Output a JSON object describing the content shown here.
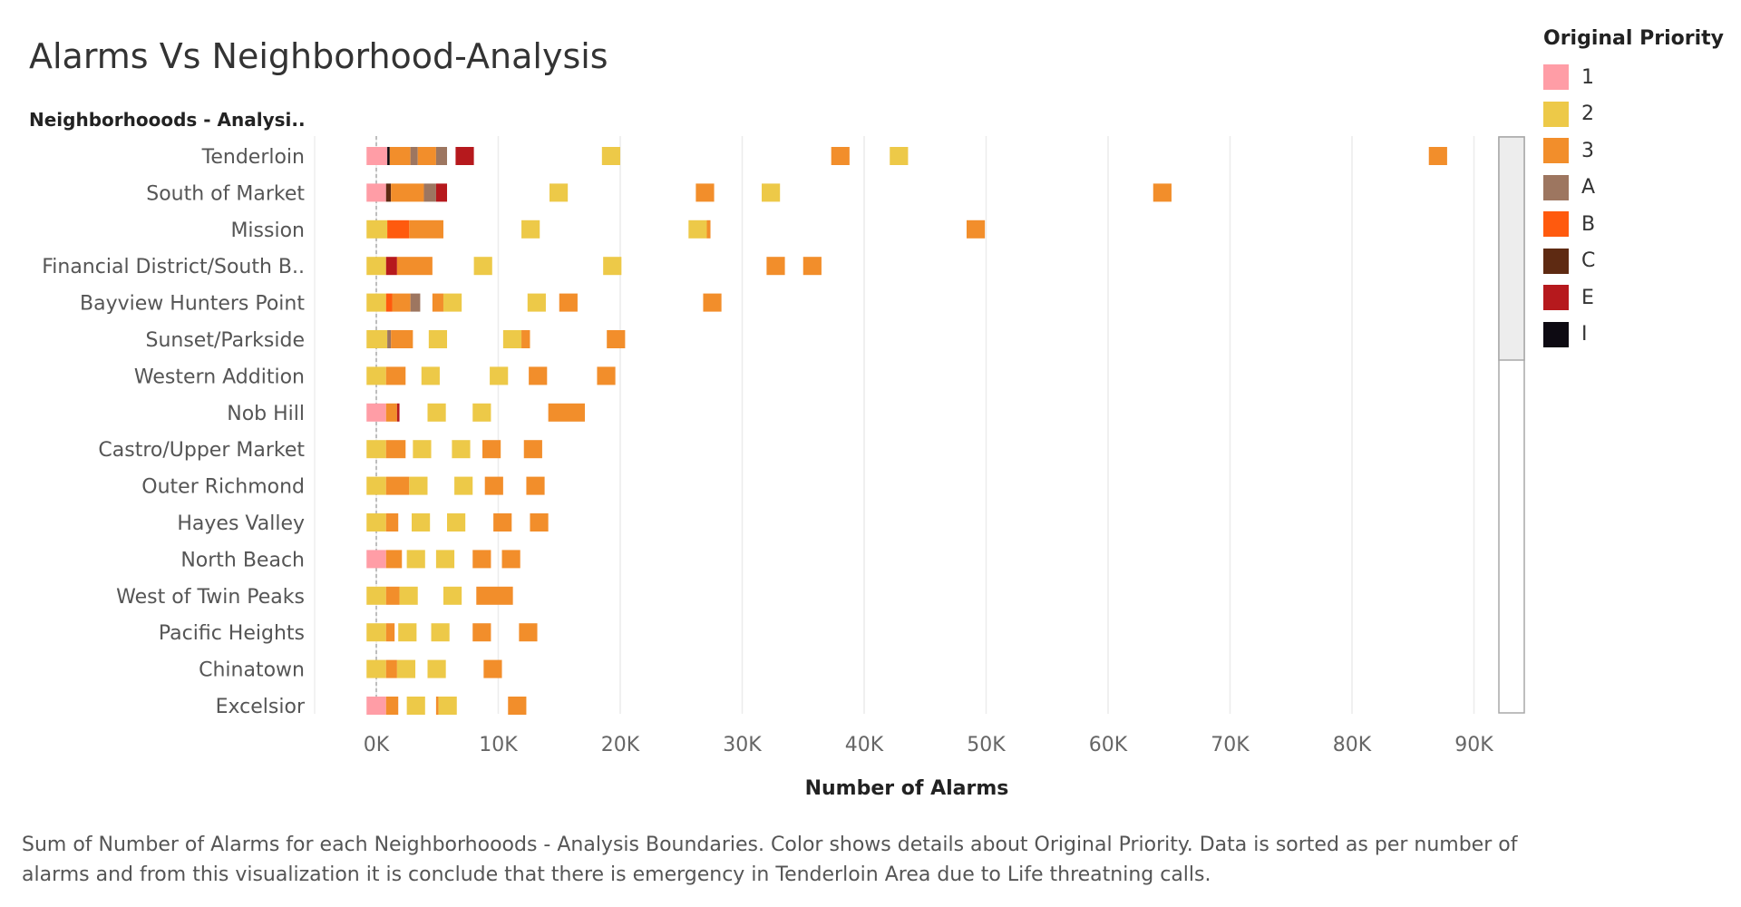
{
  "title": "Alarms Vs Neighborhood-Analysis",
  "row_header": "Neighborhooods - Analysi..",
  "caption": "Sum of Number of Alarms for each Neighborhooods - Analysis Boundaries.  Color shows details about Original Priority. Data is sorted as per number of alarms and from this visualization it is conclude that there is emergency in Tenderloin Area due to Life threatning calls.",
  "legend": {
    "title": "Original Priority",
    "items": [
      {
        "label": "1",
        "color": "#FF9DA6"
      },
      {
        "label": "2",
        "color": "#EDC948"
      },
      {
        "label": "3",
        "color": "#F28E2B"
      },
      {
        "label": "A",
        "color": "#9D7660"
      },
      {
        "label": "B",
        "color": "#FF5A0E"
      },
      {
        "label": "C",
        "color": "#5E2A12"
      },
      {
        "label": "E",
        "color": "#B6191D"
      },
      {
        "label": "I",
        "color": "#0D0A12"
      }
    ]
  },
  "chart_data": {
    "type": "bar",
    "orientation": "horizontal",
    "xlabel": "Number of Alarms",
    "ylabel": "Neighborhooods - Analysi..",
    "xlim": [
      -5000,
      93000
    ],
    "xticks": [
      "0K",
      "10K",
      "20K",
      "30K",
      "40K",
      "50K",
      "60K",
      "70K",
      "80K",
      "90K"
    ],
    "xtick_values": [
      0,
      10000,
      20000,
      30000,
      40000,
      50000,
      60000,
      70000,
      80000,
      90000
    ],
    "grid": true,
    "legend_position": "right",
    "priority_colors": {
      "1": "#FF9DA6",
      "2": "#EDC948",
      "3": "#F28E2B",
      "A": "#9D7660",
      "B": "#FF5A0E",
      "C": "#5E2A12",
      "E": "#B6191D",
      "I": "#0D0A12"
    },
    "categories": [
      "Tenderloin",
      "South of Market",
      "Mission",
      "Financial District/South B..",
      "Bayview Hunters Point",
      "Sunset/Parkside",
      "Western Addition",
      "Nob Hill",
      "Castro/Upper Market",
      "Outer Richmond",
      "Hayes Valley",
      "North Beach",
      "West of Twin Peaks",
      "Pacific Heights",
      "Chinatown",
      "Excelsior"
    ],
    "marks": [
      [
        {
          "p": "1",
          "x0": -800,
          "x1": 900
        },
        {
          "p": "I",
          "x0": 900,
          "x1": 1100
        },
        {
          "p": "3",
          "x0": 1100,
          "x1": 2800
        },
        {
          "p": "A",
          "x0": 2800,
          "x1": 3400
        },
        {
          "p": "3",
          "x0": 3400,
          "x1": 4900
        },
        {
          "p": "A",
          "x0": 4900,
          "x1": 5800
        },
        {
          "p": "E",
          "x0": 6500,
          "x1": 8000
        },
        {
          "p": "2",
          "x0": 18500,
          "x1": 20000
        },
        {
          "p": "3",
          "x0": 37300,
          "x1": 38800
        },
        {
          "p": "2",
          "x0": 42100,
          "x1": 43600
        },
        {
          "p": "3",
          "x0": 86300,
          "x1": 87800
        }
      ],
      [
        {
          "p": "1",
          "x0": -800,
          "x1": 800
        },
        {
          "p": "C",
          "x0": 800,
          "x1": 1200
        },
        {
          "p": "3",
          "x0": 1200,
          "x1": 3900
        },
        {
          "p": "A",
          "x0": 3900,
          "x1": 4900
        },
        {
          "p": "E",
          "x0": 4900,
          "x1": 5800
        },
        {
          "p": "2",
          "x0": 14200,
          "x1": 15700
        },
        {
          "p": "3",
          "x0": 26200,
          "x1": 27700
        },
        {
          "p": "2",
          "x0": 31600,
          "x1": 33100
        },
        {
          "p": "3",
          "x0": 63700,
          "x1": 65200
        }
      ],
      [
        {
          "p": "2",
          "x0": -800,
          "x1": 900
        },
        {
          "p": "B",
          "x0": 900,
          "x1": 2700
        },
        {
          "p": "3",
          "x0": 2700,
          "x1": 5500
        },
        {
          "p": "2",
          "x0": 11900,
          "x1": 13400
        },
        {
          "p": "2",
          "x0": 25600,
          "x1": 27100
        },
        {
          "p": "3",
          "x0": 27100,
          "x1": 27400
        },
        {
          "p": "3",
          "x0": 48400,
          "x1": 49900
        }
      ],
      [
        {
          "p": "2",
          "x0": -800,
          "x1": 800
        },
        {
          "p": "E",
          "x0": 800,
          "x1": 1700
        },
        {
          "p": "3",
          "x0": 1700,
          "x1": 4600
        },
        {
          "p": "2",
          "x0": 8000,
          "x1": 9500
        },
        {
          "p": "2",
          "x0": 18600,
          "x1": 20100
        },
        {
          "p": "3",
          "x0": 32000,
          "x1": 33500
        },
        {
          "p": "3",
          "x0": 35000,
          "x1": 36500
        }
      ],
      [
        {
          "p": "2",
          "x0": -800,
          "x1": 800
        },
        {
          "p": "B",
          "x0": 800,
          "x1": 1300
        },
        {
          "p": "3",
          "x0": 1300,
          "x1": 2800
        },
        {
          "p": "A",
          "x0": 2800,
          "x1": 3600
        },
        {
          "p": "3",
          "x0": 4600,
          "x1": 5500
        },
        {
          "p": "2",
          "x0": 5500,
          "x1": 7000
        },
        {
          "p": "2",
          "x0": 12400,
          "x1": 13900
        },
        {
          "p": "3",
          "x0": 15000,
          "x1": 16500
        },
        {
          "p": "3",
          "x0": 26800,
          "x1": 28300
        }
      ],
      [
        {
          "p": "2",
          "x0": -800,
          "x1": 900
        },
        {
          "p": "A",
          "x0": 900,
          "x1": 1200
        },
        {
          "p": "3",
          "x0": 1200,
          "x1": 3000
        },
        {
          "p": "2",
          "x0": 4300,
          "x1": 5800
        },
        {
          "p": "2",
          "x0": 10400,
          "x1": 11900
        },
        {
          "p": "3",
          "x0": 11900,
          "x1": 12600
        },
        {
          "p": "3",
          "x0": 18900,
          "x1": 20400
        }
      ],
      [
        {
          "p": "2",
          "x0": -800,
          "x1": 800
        },
        {
          "p": "3",
          "x0": 800,
          "x1": 2400
        },
        {
          "p": "2",
          "x0": 3700,
          "x1": 5200
        },
        {
          "p": "2",
          "x0": 9300,
          "x1": 10800
        },
        {
          "p": "3",
          "x0": 12500,
          "x1": 14000
        },
        {
          "p": "3",
          "x0": 18100,
          "x1": 19600
        }
      ],
      [
        {
          "p": "1",
          "x0": -800,
          "x1": 800
        },
        {
          "p": "3",
          "x0": 800,
          "x1": 1700
        },
        {
          "p": "E",
          "x0": 1700,
          "x1": 1900
        },
        {
          "p": "2",
          "x0": 4200,
          "x1": 5700
        },
        {
          "p": "2",
          "x0": 7900,
          "x1": 9400
        },
        {
          "p": "3",
          "x0": 14100,
          "x1": 17100
        }
      ],
      [
        {
          "p": "2",
          "x0": -800,
          "x1": 800
        },
        {
          "p": "3",
          "x0": 800,
          "x1": 2400
        },
        {
          "p": "2",
          "x0": 3000,
          "x1": 4500
        },
        {
          "p": "2",
          "x0": 6200,
          "x1": 7700
        },
        {
          "p": "3",
          "x0": 8700,
          "x1": 10200
        },
        {
          "p": "3",
          "x0": 12100,
          "x1": 13600
        }
      ],
      [
        {
          "p": "2",
          "x0": -800,
          "x1": 800
        },
        {
          "p": "3",
          "x0": 800,
          "x1": 2700
        },
        {
          "p": "2",
          "x0": 2700,
          "x1": 4200
        },
        {
          "p": "2",
          "x0": 6400,
          "x1": 7900
        },
        {
          "p": "3",
          "x0": 8900,
          "x1": 10400
        },
        {
          "p": "3",
          "x0": 12300,
          "x1": 13800
        }
      ],
      [
        {
          "p": "2",
          "x0": -800,
          "x1": 800
        },
        {
          "p": "3",
          "x0": 800,
          "x1": 1800
        },
        {
          "p": "2",
          "x0": 2900,
          "x1": 4400
        },
        {
          "p": "2",
          "x0": 5800,
          "x1": 7300
        },
        {
          "p": "3",
          "x0": 9600,
          "x1": 11100
        },
        {
          "p": "3",
          "x0": 12600,
          "x1": 14100
        }
      ],
      [
        {
          "p": "1",
          "x0": -800,
          "x1": 800
        },
        {
          "p": "3",
          "x0": 800,
          "x1": 2100
        },
        {
          "p": "2",
          "x0": 2500,
          "x1": 4000
        },
        {
          "p": "2",
          "x0": 4900,
          "x1": 6400
        },
        {
          "p": "3",
          "x0": 7900,
          "x1": 9400
        },
        {
          "p": "3",
          "x0": 10300,
          "x1": 11800
        }
      ],
      [
        {
          "p": "2",
          "x0": -800,
          "x1": 800
        },
        {
          "p": "3",
          "x0": 800,
          "x1": 1900
        },
        {
          "p": "2",
          "x0": 1900,
          "x1": 3400
        },
        {
          "p": "2",
          "x0": 5500,
          "x1": 7000
        },
        {
          "p": "3",
          "x0": 8200,
          "x1": 11200
        }
      ],
      [
        {
          "p": "2",
          "x0": -800,
          "x1": 800
        },
        {
          "p": "3",
          "x0": 800,
          "x1": 1500
        },
        {
          "p": "2",
          "x0": 1800,
          "x1": 3300
        },
        {
          "p": "2",
          "x0": 4500,
          "x1": 6000
        },
        {
          "p": "3",
          "x0": 7900,
          "x1": 9400
        },
        {
          "p": "3",
          "x0": 11700,
          "x1": 13200
        }
      ],
      [
        {
          "p": "2",
          "x0": -800,
          "x1": 800
        },
        {
          "p": "3",
          "x0": 800,
          "x1": 1700
        },
        {
          "p": "2",
          "x0": 1700,
          "x1": 3200
        },
        {
          "p": "2",
          "x0": 4200,
          "x1": 5700
        },
        {
          "p": "3",
          "x0": 8800,
          "x1": 10300
        }
      ],
      [
        {
          "p": "1",
          "x0": -800,
          "x1": 800
        },
        {
          "p": "3",
          "x0": 800,
          "x1": 1800
        },
        {
          "p": "2",
          "x0": 2500,
          "x1": 4000
        },
        {
          "p": "3",
          "x0": 4900,
          "x1": 5100
        },
        {
          "p": "2",
          "x0": 5100,
          "x1": 6600
        },
        {
          "p": "3",
          "x0": 10800,
          "x1": 12300
        }
      ]
    ]
  }
}
